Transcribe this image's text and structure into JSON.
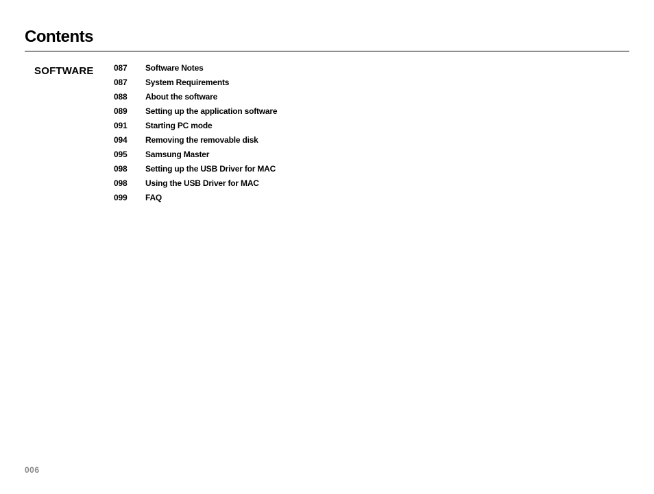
{
  "title": "Contents",
  "section": "SOFTWARE",
  "entries": [
    {
      "page": "087",
      "title": "Software Notes"
    },
    {
      "page": "087",
      "title": "System Requirements"
    },
    {
      "page": "088",
      "title": "About the software"
    },
    {
      "page": "089",
      "title": "Setting up the application software"
    },
    {
      "page": "091",
      "title": "Starting PC mode"
    },
    {
      "page": "094",
      "title": "Removing the removable disk"
    },
    {
      "page": "095",
      "title": "Samsung Master"
    },
    {
      "page": "098",
      "title": "Setting up the USB Driver for MAC"
    },
    {
      "page": "098",
      "title": "Using the USB Driver for MAC"
    },
    {
      "page": "099",
      "title": "FAQ"
    }
  ],
  "page_number": "006"
}
